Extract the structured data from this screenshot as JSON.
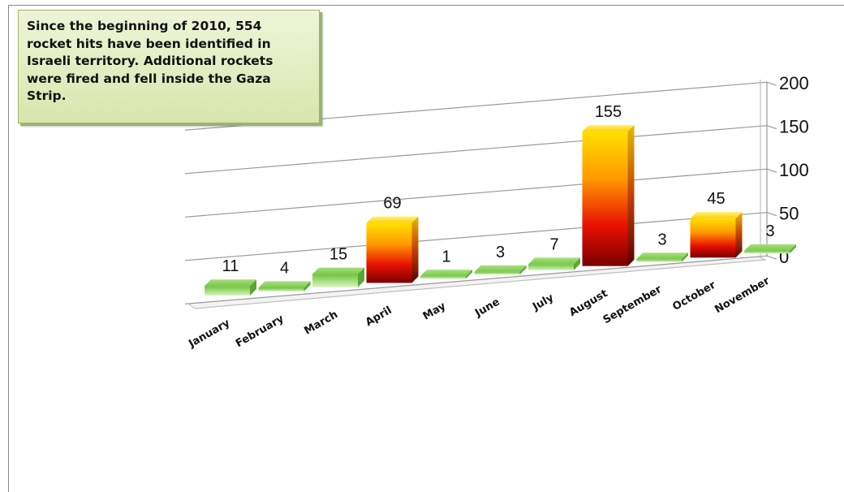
{
  "annotation": "Since the beginning of 2010, 554 rocket hits have been identified in Israeli territory. Additional rockets were fired and fell inside the Gaza Strip.",
  "chart_data": {
    "type": "bar",
    "title": "",
    "xlabel": "",
    "ylabel": "",
    "categories": [
      "January",
      "February",
      "March",
      "April",
      "May",
      "June",
      "July",
      "August",
      "September",
      "October",
      "November"
    ],
    "values": [
      11,
      4,
      15,
      69,
      1,
      3,
      7,
      155,
      3,
      45,
      3
    ],
    "y_ticks": [
      "0",
      "50",
      "100",
      "150",
      "200"
    ],
    "ylim": [
      0,
      200
    ],
    "grid": true,
    "legend": "none",
    "colors": {
      "low_bar": "#7ccf4a",
      "high_bar_top": "#ffd400",
      "high_bar_bottom": "#8c0000",
      "axis": "#888888"
    }
  }
}
